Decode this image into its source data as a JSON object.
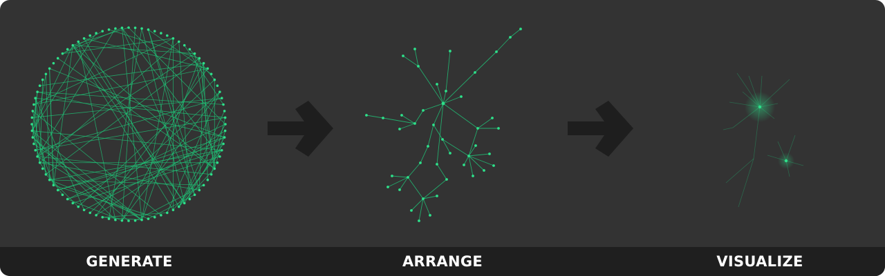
{
  "stages": [
    {
      "label": "GENERATE"
    },
    {
      "label": "ARRANGE"
    },
    {
      "label": "VISUALIZE"
    }
  ],
  "colors": {
    "background": "#333333",
    "label_bar": "#1f1f1f",
    "label_text": "#ffffff",
    "node": "#2ee08a",
    "edge": "#1fc97a",
    "arrow": "#1e1e1e"
  },
  "icons": [
    "right-arrow-icon",
    "right-arrow-icon"
  ]
}
